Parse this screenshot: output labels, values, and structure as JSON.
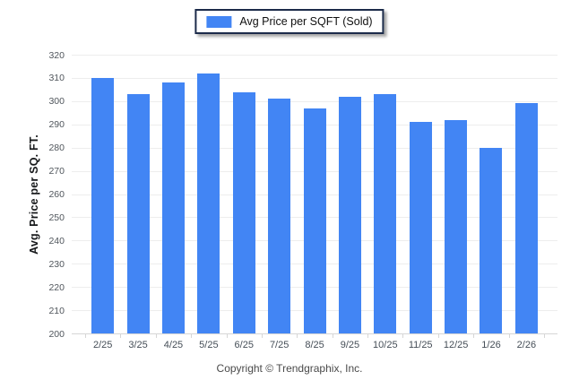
{
  "legend": {
    "label": "Avg Price per SQFT (Sold)",
    "border_color": "#1C2B4A"
  },
  "footer": {
    "copyright": "Copyright © Trendgraphix, Inc."
  },
  "chart_data": {
    "type": "bar",
    "title": "",
    "categories": [
      "2/25",
      "3/25",
      "4/25",
      "5/25",
      "6/25",
      "7/25",
      "8/25",
      "9/25",
      "10/25",
      "11/25",
      "12/25",
      "1/26",
      "2/26"
    ],
    "series": [
      {
        "name": "Avg Price per SQFT (Sold)",
        "values": [
          310,
          303,
          308,
          312,
          304,
          301,
          297,
          302,
          303,
          291,
          292,
          280,
          299
        ]
      }
    ],
    "xlabel": "",
    "ylabel": "Avg. Price per SQ. FT.",
    "ylim": [
      200,
      320
    ],
    "yticks": [
      200,
      210,
      220,
      230,
      240,
      250,
      260,
      270,
      280,
      290,
      300,
      310,
      320
    ],
    "grid": true,
    "legend_position": "top-center",
    "bar_color": "#4285F4",
    "gridline_color": "#ededed",
    "axis_line_color": "#d6d6d6"
  }
}
